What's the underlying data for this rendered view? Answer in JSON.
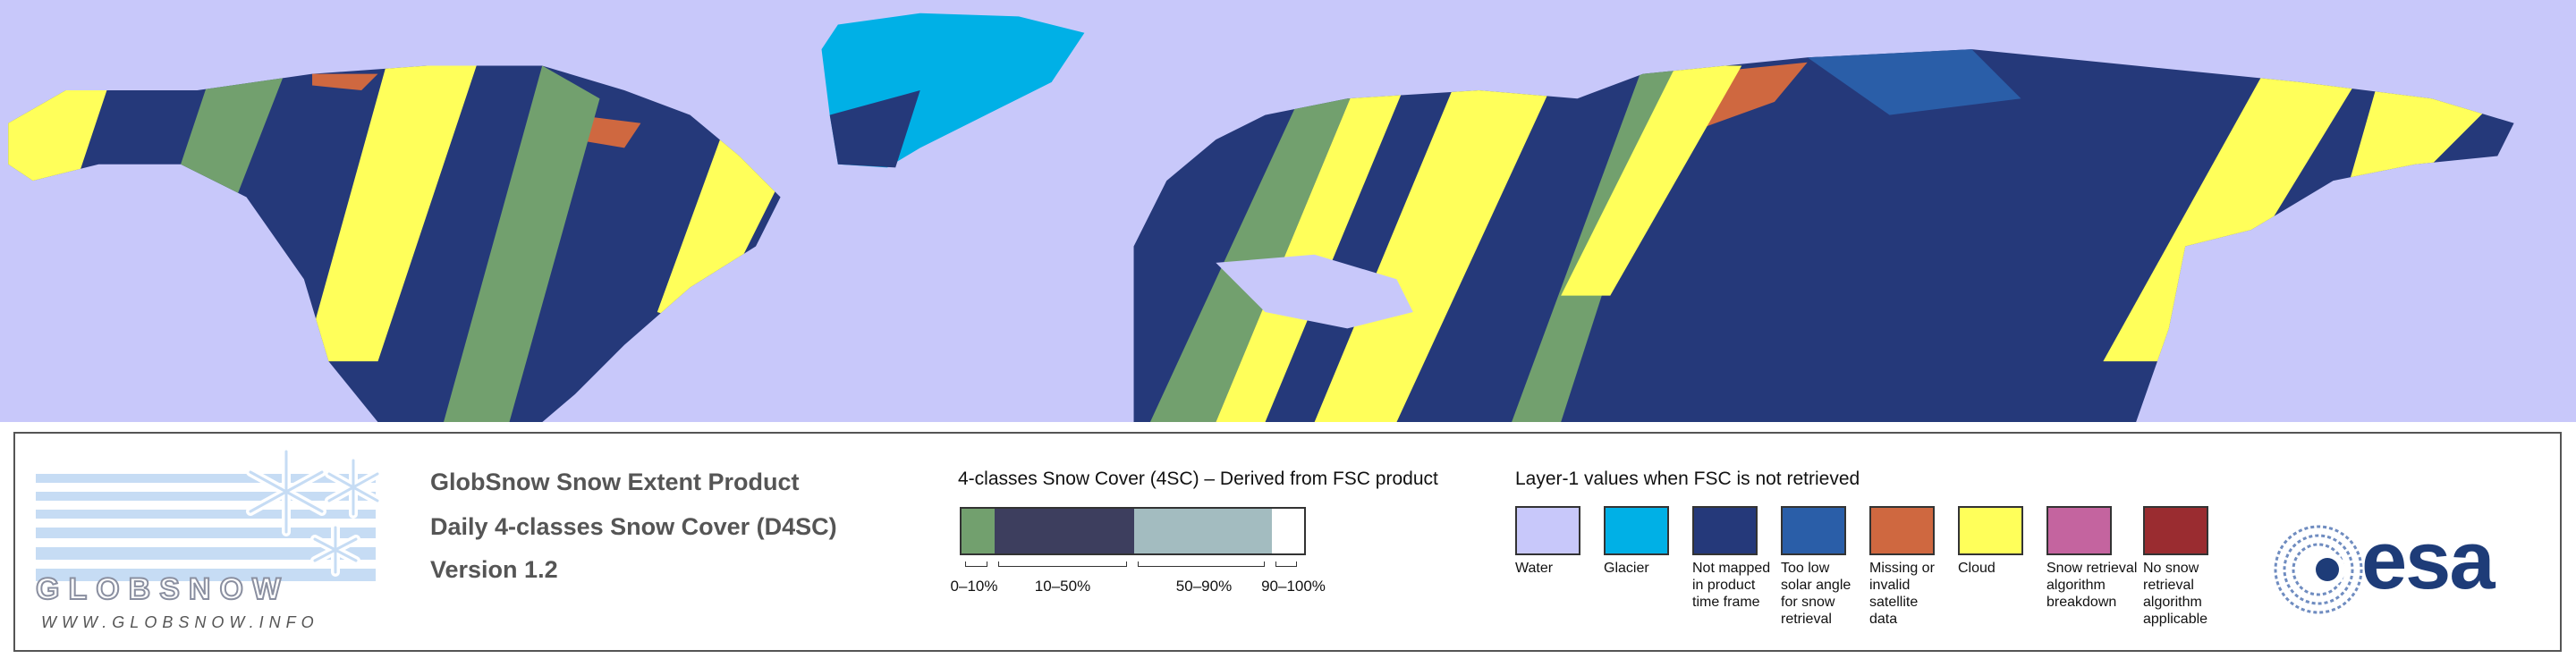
{
  "header": {
    "title": "GlobSnow Snow Extent Product",
    "subtitle": "Daily 4-classes Snow Cover (D4SC)",
    "version": "Version 1.2"
  },
  "logo": {
    "name": "GLOBSNOW",
    "url": "WWW.GLOBSNOW.INFO"
  },
  "scale": {
    "title": "4-classes Snow Cover (4SC) – Derived from FSC product",
    "classes": [
      {
        "label": "0–10%",
        "color": "#72a06e"
      },
      {
        "label": "10–50%",
        "color": "#3d3e5e"
      },
      {
        "label": "50–90%",
        "color": "#a3bcc0"
      },
      {
        "label": "90–100%",
        "color": "#ffffff"
      }
    ]
  },
  "layer1": {
    "title": "Layer-1 values when FSC is not retrieved",
    "classes": [
      {
        "label": "Water",
        "color": "#c8c8fa"
      },
      {
        "label": "Glacier",
        "color": "#00b0e6"
      },
      {
        "label": "Not mapped in product time frame",
        "color": "#25397a"
      },
      {
        "label": "Too low solar angle for snow retrieval",
        "color": "#2a5ea8"
      },
      {
        "label": "Missing or invalid satellite data",
        "color": "#cf6840"
      },
      {
        "label": "Cloud",
        "color": "#ffff5a"
      },
      {
        "label": "Snow retrieval algorithm breakdown",
        "color": "#c4649f"
      },
      {
        "label": "No snow retrieval algorithm applicable",
        "color": "#9a2c30"
      }
    ]
  },
  "agency": "esa"
}
